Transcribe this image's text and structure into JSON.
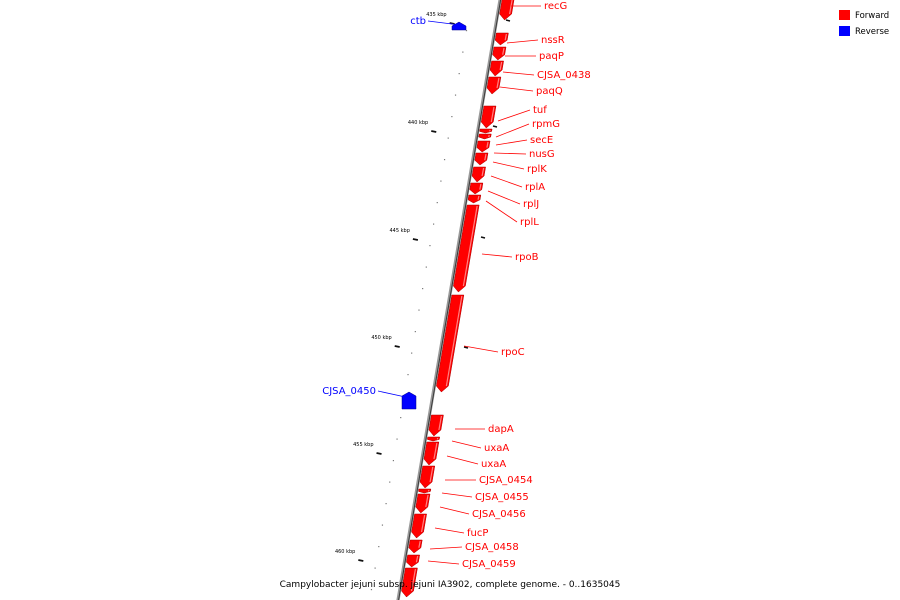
{
  "caption": "Campylobacter jejuni subsp. jejuni IA3902, complete genome. - 0..1635045",
  "legend": [
    {
      "label": "Forward",
      "color": "#ff0000"
    },
    {
      "label": "Reverse",
      "color": "#0000ff"
    }
  ],
  "colors": {
    "forward": "#ff0000",
    "reverse": "#0000ff",
    "backbone": "#808080"
  },
  "ticks": [
    "435 kbp",
    "440 kbp",
    "445 kbp",
    "450 kbp",
    "455 kbp",
    "460 kbp"
  ],
  "forward_genes": [
    "recG",
    "nssR",
    "paqP",
    "CJSA_0438",
    "paqQ",
    "tuf",
    "rpmG",
    "secE",
    "nusG",
    "rplK",
    "rplA",
    "rplJ",
    "rplL",
    "rpoB",
    "rpoC",
    "dapA",
    "uxaA",
    "uxaA",
    "CJSA_0454",
    "CJSA_0455",
    "CJSA_0456",
    "fucP",
    "CJSA_0458",
    "CJSA_0459"
  ],
  "reverse_genes": [
    "ctb",
    "CJSA_0450"
  ]
}
